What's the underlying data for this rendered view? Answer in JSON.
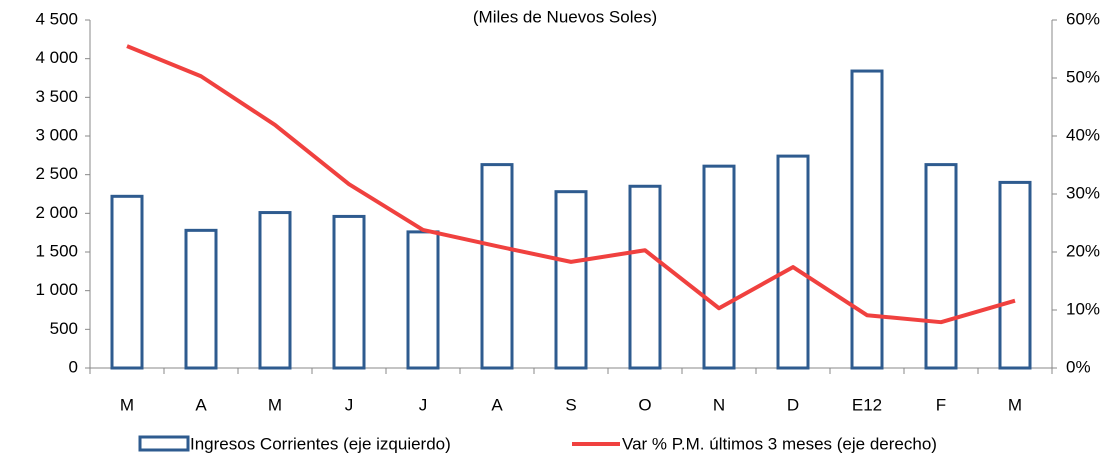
{
  "chart_data": {
    "type": "bar_line",
    "subtitle": "(Miles de Nuevos Soles)",
    "categories": [
      "M",
      "A",
      "M",
      "J",
      "J",
      "A",
      "S",
      "O",
      "N",
      "D",
      "E12",
      "F",
      "M"
    ],
    "series": [
      {
        "name": "Ingresos Corrientes (eje izquierdo)",
        "type": "bar",
        "color": "#2e5b8f",
        "values": [
          2220,
          1780,
          2010,
          1960,
          1760,
          2630,
          2280,
          2350,
          2610,
          2740,
          3840,
          2630,
          2400
        ]
      },
      {
        "name": "Var % P.M. últimos  3 meses (eje derecho)",
        "type": "line",
        "axis": "y2",
        "color": "#f0413f",
        "values": [
          55.5,
          50.3,
          41.9,
          31.7,
          23.8,
          21.0,
          18.3,
          20.3,
          10.3,
          17.4,
          9.1,
          7.9,
          11.6
        ]
      }
    ],
    "ylim": [
      0,
      4500
    ],
    "yticks": [
      0,
      500,
      {
        "value": 1000,
        "label": "1 000"
      },
      {
        "value": 1500,
        "label": "1 500"
      },
      {
        "value": 2000,
        "label": "2 000"
      },
      {
        "value": 2500,
        "label": "2 500"
      },
      {
        "value": 3000,
        "label": "3 000"
      },
      {
        "value": 3500,
        "label": "3 500"
      },
      {
        "value": 4000,
        "label": "4 000"
      },
      {
        "value": 4500,
        "label": "4 500"
      }
    ],
    "y2lim": [
      0,
      60
    ],
    "y2ticks": [
      {
        "value": 0,
        "label": "0%"
      },
      {
        "value": 10,
        "label": "10%"
      },
      {
        "value": 20,
        "label": "20%"
      },
      {
        "value": 30,
        "label": "30%"
      },
      {
        "value": 40,
        "label": "40%"
      },
      {
        "value": 50,
        "label": "50%"
      },
      {
        "value": 60,
        "label": "60%"
      }
    ],
    "grid": false,
    "legend": "bottom"
  }
}
